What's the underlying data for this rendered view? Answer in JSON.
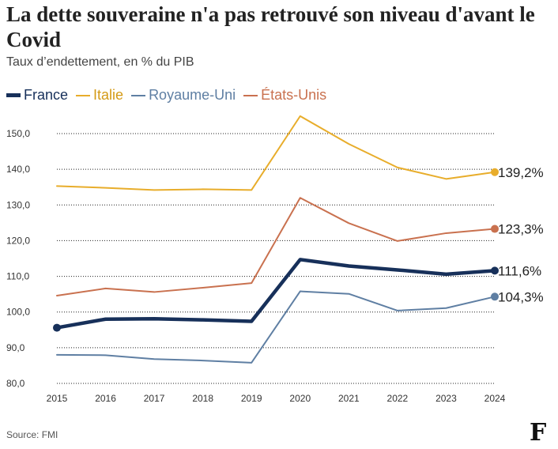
{
  "header": {
    "title": "La dette souveraine n'a pas retrouvé son niveau d'avant le Covid",
    "subtitle": "Taux d’endettement, en % du PIB"
  },
  "footer": {
    "source": "Source: FMI",
    "logo_text": "F"
  },
  "colors": {
    "France": "#17305a",
    "Italie": "#e8ad2b",
    "Royaume-Uni": "#5f7fa3",
    "États-Unis": "#c9714f"
  },
  "chart_data": {
    "type": "line",
    "title": "La dette souveraine n'a pas retrouvé son niveau d'avant le Covid",
    "subtitle": "Taux d’endettement, en % du PIB",
    "x": [
      2015,
      2016,
      2017,
      2018,
      2019,
      2020,
      2021,
      2022,
      2023,
      2024
    ],
    "x_tick_labels": [
      "2015",
      "2016",
      "2017",
      "2018",
      "2019",
      "2020",
      "2021",
      "2022",
      "2023",
      "2024"
    ],
    "ylim": [
      80,
      150
    ],
    "y_ticks": [
      80,
      90,
      100,
      110,
      120,
      130,
      140,
      150
    ],
    "y_tick_labels": [
      "80,0",
      "90,0",
      "100,0",
      "110,0",
      "120,0",
      "130,0",
      "140,0",
      "150,0"
    ],
    "grid": "horizontal dotted",
    "legend_position": "top-left",
    "series": [
      {
        "name": "France",
        "values": [
          95.6,
          98.0,
          98.1,
          97.8,
          97.4,
          114.7,
          112.9,
          111.8,
          110.6,
          111.6
        ],
        "end_label": "111,6%"
      },
      {
        "name": "Italie",
        "values": [
          135.3,
          134.8,
          134.2,
          134.4,
          134.2,
          154.9,
          147.1,
          140.5,
          137.3,
          139.2
        ],
        "end_label": "139,2%"
      },
      {
        "name": "Royaume-Uni",
        "values": [
          88.0,
          87.9,
          86.8,
          86.4,
          85.8,
          105.8,
          105.1,
          100.4,
          101.1,
          104.3
        ],
        "end_label": "104,3%"
      },
      {
        "name": "États-Unis",
        "values": [
          104.6,
          106.6,
          105.6,
          106.8,
          108.1,
          132.0,
          124.9,
          119.9,
          122.1,
          123.3
        ],
        "end_label": "123,3%"
      }
    ]
  }
}
